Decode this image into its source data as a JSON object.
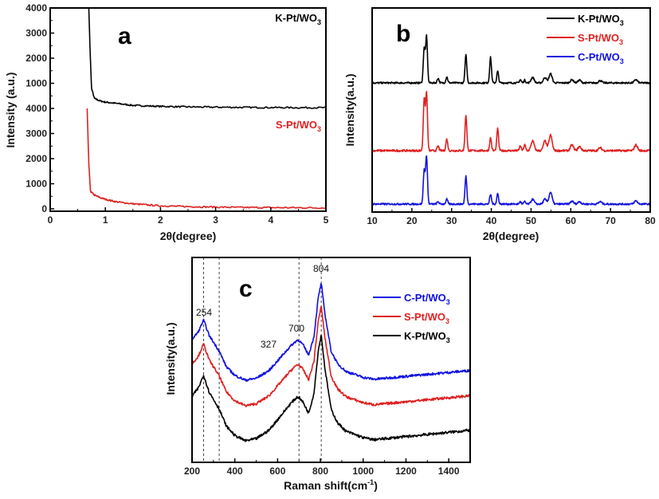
{
  "chart_data": [
    {
      "id": "a",
      "type": "line",
      "panel_label": "a",
      "xlabel": "2θ(degree)",
      "ylabel": "Intensity (a.u.)",
      "xlim": [
        0,
        5
      ],
      "x_ticks": [
        "0",
        "1",
        "2",
        "3",
        "4",
        "5"
      ],
      "y_tick_labels": [
        "0",
        "1000",
        "2000",
        "3000",
        "4000",
        "1000",
        "2000",
        "3000",
        "4000"
      ],
      "note": "Stacked/offset plot: lower half S-Pt/WO3 (0-4000), upper half K-Pt/WO3 (4000 baseline to ~4000 more)",
      "series": [
        {
          "name": "K-Pt/WO3",
          "color": "#000000",
          "label_text": "K-Pt/WO",
          "label_sub": "3",
          "x": [
            0.7,
            0.72,
            0.75,
            0.8,
            0.9,
            1.0,
            1.2,
            1.5,
            2.0,
            2.5,
            3.0,
            3.5,
            4.0,
            4.5,
            5.0
          ],
          "y": [
            4000,
            2500,
            800,
            400,
            300,
            250,
            200,
            120,
            80,
            60,
            50,
            40,
            35,
            30,
            30
          ]
        },
        {
          "name": "S-Pt/WO3",
          "color": "#e02020",
          "label_text": "S-Pt/WO",
          "label_sub": "3",
          "x": [
            0.67,
            0.7,
            0.73,
            0.8,
            0.9,
            1.0,
            1.2,
            1.5,
            2.0,
            2.5,
            3.0,
            3.5,
            4.0,
            4.5,
            5.0
          ],
          "y": [
            4000,
            1800,
            700,
            550,
            450,
            380,
            280,
            200,
            120,
            90,
            70,
            55,
            50,
            45,
            40
          ]
        }
      ]
    },
    {
      "id": "b",
      "type": "line",
      "panel_label": "b",
      "xlabel": "2θ(degree)",
      "ylabel": "Intensity(a.u.)",
      "xlim": [
        10,
        80
      ],
      "x_ticks": [
        "10",
        "20",
        "30",
        "40",
        "50",
        "60",
        "70",
        "80"
      ],
      "legend": "top-right",
      "peaks_2theta": [
        23.1,
        23.7,
        26.6,
        28.8,
        33.6,
        39.8,
        41.6,
        47.3,
        48.4,
        50.4,
        53.5,
        54.9,
        60.3,
        62.2,
        67.4,
        76.4
      ],
      "series": [
        {
          "name": "K-Pt/WO3",
          "color": "#000000",
          "label_text": "K-Pt/WO",
          "label_sub": "3",
          "heights": [
            0.75,
            1.0,
            0.1,
            0.13,
            0.6,
            0.55,
            0.25,
            0.07,
            0.06,
            0.12,
            0.12,
            0.2,
            0.07,
            0.06,
            0.05,
            0.07
          ]
        },
        {
          "name": "S-Pt/WO3",
          "color": "#e02020",
          "label_text": "S-Pt/WO",
          "label_sub": "3",
          "heights": [
            0.9,
            1.0,
            0.08,
            0.2,
            0.62,
            0.22,
            0.38,
            0.08,
            0.1,
            0.17,
            0.17,
            0.27,
            0.1,
            0.07,
            0.05,
            0.1
          ]
        },
        {
          "name": "C-Pt/WO3",
          "color": "#1010e0",
          "label_text": "C-Pt/WO",
          "label_sub": "3",
          "heights": [
            0.7,
            1.0,
            0.05,
            0.1,
            0.58,
            0.2,
            0.22,
            0.05,
            0.05,
            0.1,
            0.1,
            0.25,
            0.06,
            0.05,
            0.05,
            0.07
          ]
        }
      ]
    },
    {
      "id": "c",
      "type": "line",
      "panel_label": "c",
      "xlabel": "Raman shift(cm",
      "xlabel_sup": "-1",
      "xlabel_end": ")",
      "ylabel": "Intensity(a.u.)",
      "xlim": [
        200,
        1500
      ],
      "x_ticks": [
        "200",
        "400",
        "600",
        "800",
        "1000",
        "1200",
        "1400"
      ],
      "legend": "top-right",
      "reference_lines": [
        254,
        327,
        700,
        804
      ],
      "annotations": [
        {
          "text": "254",
          "x": 254
        },
        {
          "text": "327",
          "x": 327
        },
        {
          "text": "700",
          "x": 700
        },
        {
          "text": "804",
          "x": 804
        }
      ],
      "series": [
        {
          "name": "C-Pt/WO3",
          "color": "#1010e0",
          "label_text": "C-Pt/WO",
          "label_sub": "3"
        },
        {
          "name": "S-Pt/WO3",
          "color": "#e02020",
          "label_text": "S-Pt/WO",
          "label_sub": "3"
        },
        {
          "name": "K-Pt/WO3",
          "color": "#000000",
          "label_text": "K-Pt/WO",
          "label_sub": "3"
        }
      ],
      "profile": {
        "x": [
          200,
          230,
          254,
          280,
          327,
          360,
          400,
          450,
          500,
          560,
          620,
          660,
          690,
          700,
          720,
          745,
          770,
          790,
          804,
          820,
          850,
          880,
          920,
          1000,
          1050,
          1100,
          1200,
          1300,
          1400,
          1500
        ],
        "y": [
          0.42,
          0.5,
          0.62,
          0.46,
          0.3,
          0.14,
          0.05,
          0.0,
          0.02,
          0.1,
          0.25,
          0.35,
          0.41,
          0.41,
          0.36,
          0.26,
          0.45,
          0.85,
          1.0,
          0.7,
          0.3,
          0.17,
          0.09,
          0.03,
          0.01,
          0.02,
          0.04,
          0.06,
          0.08,
          0.1
        ]
      }
    }
  ]
}
